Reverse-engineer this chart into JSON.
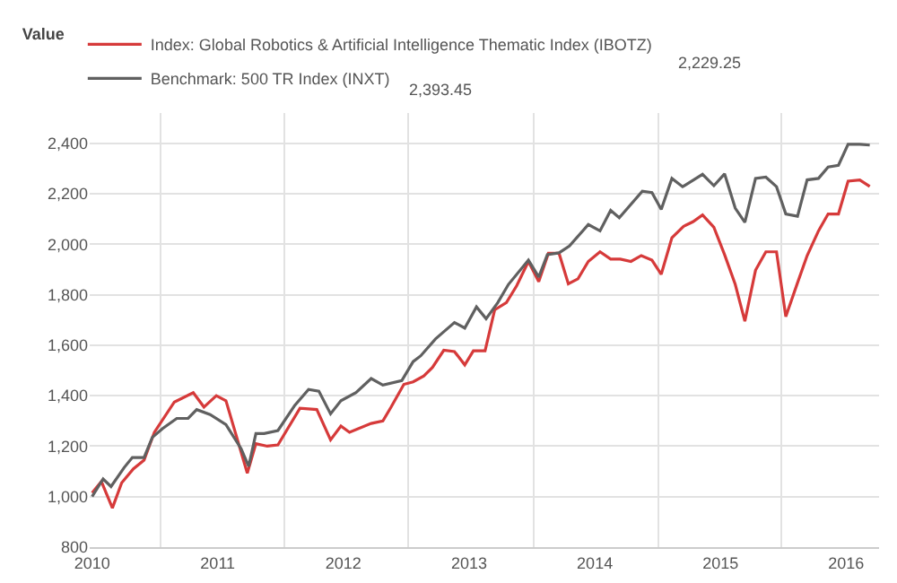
{
  "chart_data": {
    "type": "line",
    "legend_title": "Value",
    "legend": "top left",
    "grid": true,
    "annotations": [
      "2,229.25",
      "2,393.45"
    ],
    "xlim": [
      "2009-12-25",
      "2016-04-06"
    ],
    "xticks": [
      {
        "value": "2010-01-01",
        "label": "2010"
      },
      {
        "value": "2010-07-19",
        "label": null
      },
      {
        "value": "2011-01-01",
        "label": "2011"
      },
      {
        "value": "2011-07-13",
        "label": null
      },
      {
        "value": "2012-01-01",
        "label": "2012"
      },
      {
        "value": "2012-07-07",
        "label": null
      },
      {
        "value": "2013-01-01",
        "label": "2013"
      },
      {
        "value": "2013-07-07",
        "label": null
      },
      {
        "value": "2014-01-01",
        "label": "2014"
      },
      {
        "value": "2014-07-04",
        "label": null
      },
      {
        "value": "2015-01-01",
        "label": "2015"
      },
      {
        "value": "2015-06-28",
        "label": null
      },
      {
        "value": "2016-01-01",
        "label": "2016"
      }
    ],
    "ylim": [
      800,
      2520
    ],
    "yticks": [
      {
        "value": 800,
        "label": "800"
      },
      {
        "value": 1000,
        "label": "1,000"
      },
      {
        "value": 1200,
        "label": "1,200"
      },
      {
        "value": 1400,
        "label": "1,400"
      },
      {
        "value": 1600,
        "label": "1,600"
      },
      {
        "value": 1800,
        "label": "1,800"
      },
      {
        "value": 2000,
        "label": "2,000"
      },
      {
        "value": 2200,
        "label": "2,200"
      },
      {
        "value": 2400,
        "label": "2,400"
      }
    ],
    "series": [
      {
        "name": "Index: Global Robotics & Artificial Intelligence Thematic Index (IBOTZ)",
        "color": "#d63a3a",
        "x": [
          "2010-01-01",
          "2010-01-28",
          "2010-03-01",
          "2010-03-28",
          "2010-05-01",
          "2010-06-01",
          "2010-07-01",
          "2010-08-28",
          "2010-10-22",
          "2010-11-22",
          "2010-12-28",
          "2011-01-25",
          "2011-03-28",
          "2011-04-22",
          "2011-05-25",
          "2011-06-25",
          "2011-08-28",
          "2011-10-16",
          "2011-11-25",
          "2011-12-25",
          "2012-01-19",
          "2012-03-22",
          "2012-04-25",
          "2012-05-19",
          "2012-06-25",
          "2012-07-22",
          "2012-08-22",
          "2012-09-16",
          "2012-10-19",
          "2012-11-19",
          "2012-12-19",
          "2013-01-13",
          "2013-02-16",
          "2013-03-16",
          "2013-04-19",
          "2013-05-19",
          "2013-06-22",
          "2013-07-22",
          "2013-08-19",
          "2013-09-19",
          "2013-10-16",
          "2013-11-13",
          "2013-12-13",
          "2014-01-16",
          "2014-02-16",
          "2014-03-16",
          "2014-04-16",
          "2014-05-16",
          "2014-06-16",
          "2014-07-13",
          "2014-08-13",
          "2014-09-16",
          "2014-10-13",
          "2014-11-10",
          "2014-12-13",
          "2015-01-13",
          "2015-02-13",
          "2015-03-13",
          "2015-04-13",
          "2015-05-13",
          "2015-06-13",
          "2015-07-10",
          "2015-08-13",
          "2015-09-10",
          "2015-10-13",
          "2015-11-10",
          "2015-12-10",
          "2016-01-07",
          "2016-02-10",
          "2016-03-10"
        ],
        "values": [
          1015,
          1060,
          955,
          1055,
          1110,
          1145,
          1255,
          1375,
          1412,
          1355,
          1400,
          1380,
          1093,
          1210,
          1200,
          1205,
          1350,
          1345,
          1225,
          1280,
          1255,
          1290,
          1300,
          1355,
          1445,
          1455,
          1478,
          1512,
          1580,
          1575,
          1522,
          1578,
          1578,
          1740,
          1769,
          1836,
          1932,
          1852,
          1964,
          1964,
          1843,
          1863,
          1932,
          1970,
          1941,
          1941,
          1932,
          1955,
          1937,
          1881,
          2026,
          2071,
          2089,
          2116,
          2067,
          1959,
          1841,
          1695,
          1897,
          1970,
          1970,
          1713,
          1847,
          1955,
          2053,
          2120,
          2120,
          2250,
          2255,
          2229
        ]
      },
      {
        "name": "Benchmark: 500 TR Index (INXT)",
        "color": "#606060",
        "x": [
          "2010-01-01",
          "2010-02-02",
          "2010-02-25",
          "2010-04-04",
          "2010-04-28",
          "2010-06-01",
          "2010-06-25",
          "2010-07-25",
          "2010-09-04",
          "2010-10-07",
          "2010-11-01",
          "2010-12-10",
          "2011-01-25",
          "2011-03-10",
          "2011-04-01",
          "2011-04-22",
          "2011-05-16",
          "2011-06-25",
          "2011-08-13",
          "2011-09-22",
          "2011-10-22",
          "2011-11-25",
          "2011-12-25",
          "2012-02-07",
          "2012-03-22",
          "2012-04-25",
          "2012-06-19",
          "2012-07-22",
          "2012-08-13",
          "2012-09-25",
          "2012-11-19",
          "2012-12-19",
          "2013-01-22",
          "2013-02-19",
          "2013-03-25",
          "2013-04-25",
          "2013-06-22",
          "2013-07-22",
          "2013-08-16",
          "2013-09-19",
          "2013-10-19",
          "2013-12-13",
          "2014-01-16",
          "2014-02-16",
          "2014-03-13",
          "2014-05-19",
          "2014-06-16",
          "2014-07-13",
          "2014-08-13",
          "2014-09-13",
          "2014-11-10",
          "2014-12-13",
          "2015-01-13",
          "2015-02-13",
          "2015-03-13",
          "2015-04-13",
          "2015-05-13",
          "2015-06-13",
          "2015-07-10",
          "2015-08-13",
          "2015-09-10",
          "2015-10-13",
          "2015-11-10",
          "2015-12-10",
          "2016-01-07",
          "2016-02-10",
          "2016-03-10"
        ],
        "values": [
          1000,
          1070,
          1040,
          1115,
          1155,
          1155,
          1235,
          1270,
          1310,
          1310,
          1345,
          1325,
          1285,
          1190,
          1120,
          1250,
          1250,
          1262,
          1362,
          1425,
          1418,
          1328,
          1380,
          1412,
          1468,
          1442,
          1460,
          1535,
          1558,
          1625,
          1690,
          1668,
          1752,
          1705,
          1769,
          1841,
          1937,
          1870,
          1959,
          1966,
          1993,
          2078,
          2053,
          2134,
          2105,
          2210,
          2205,
          2138,
          2261,
          2228,
          2277,
          2232,
          2279,
          2143,
          2087,
          2261,
          2266,
          2228,
          2120,
          2111,
          2255,
          2261,
          2306,
          2313,
          2396,
          2396,
          2393
        ]
      }
    ]
  }
}
